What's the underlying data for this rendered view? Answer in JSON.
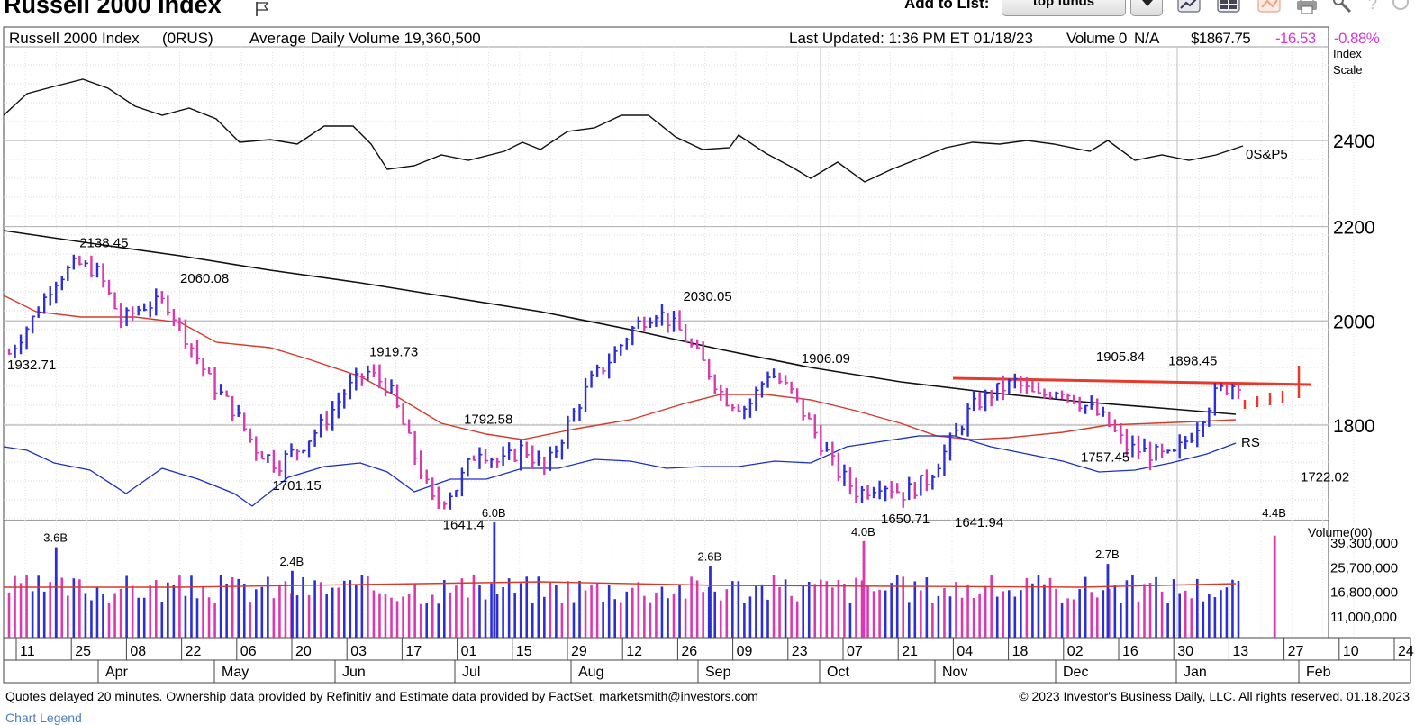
{
  "header": {
    "title": "Russell 2000 Index",
    "add_to_list_label": "Add to List:",
    "list_value": "top funds"
  },
  "icons": [
    "flag-icon",
    "dropdown-caret-icon",
    "chart-icon",
    "layout-icon",
    "compare-icon",
    "print-icon",
    "tools-icon",
    "help-icon"
  ],
  "info_bar": {
    "name": "Russell 2000 Index",
    "symbol": "(0RUS)",
    "avg_volume": "Average Daily Volume 19,360,500",
    "last_updated": "Last Updated: 1:36 PM ET 01/18/23",
    "volume": "Volume 0",
    "volume_na": "N/A",
    "price": "$1867.75",
    "change": "-16.53",
    "change_pct": "-0.88%",
    "scale_label_1": "Index",
    "scale_label_2": "Scale"
  },
  "colors": {
    "up_bar": "#2c2fd6",
    "down_bar": "#d93ab0",
    "ma_50": "#d63a2a",
    "ma_200": "#111111",
    "rs_line": "#1c2fc8",
    "sp500_line": "#111111",
    "resistance": "#e8382a",
    "change_text": "#d63ad6"
  },
  "chart_data": {
    "type": "ohlc_bar",
    "y_axis": {
      "ticks": [
        2400,
        2200,
        2000,
        1800
      ],
      "range": [
        1630,
        2480
      ],
      "scale": "log"
    },
    "price_labels": [
      {
        "text": "2138.45",
        "value": 2138.45,
        "date": "Mar 29"
      },
      {
        "text": "1932.71",
        "value": 1932.71,
        "date": "Mar 11"
      },
      {
        "text": "2060.08",
        "value": 2060.08,
        "date": "Apr 20"
      },
      {
        "text": "1919.73",
        "value": 1919.73,
        "date": "Jun 03"
      },
      {
        "text": "1701.15",
        "value": 1701.15,
        "date": "May 09"
      },
      {
        "text": "1792.58",
        "value": 1792.58,
        "date": "Jun 22"
      },
      {
        "text": "1641.4",
        "value": 1641.4,
        "date": "Jun 16"
      },
      {
        "text": "2030.05",
        "value": 2030.05,
        "date": "Aug 12"
      },
      {
        "text": "1906.09",
        "value": 1906.09,
        "date": "Sep 08"
      },
      {
        "text": "1650.71",
        "value": 1650.71,
        "date": "Sep 26"
      },
      {
        "text": "1641.94",
        "value": 1641.94,
        "date": "Oct 11"
      },
      {
        "text": "1905.84",
        "value": 1905.84,
        "date": "Nov 10"
      },
      {
        "text": "1898.45",
        "value": 1898.45,
        "date": "Nov 28"
      },
      {
        "text": "1757.45",
        "value": 1757.45,
        "date": "Nov 09"
      },
      {
        "text": "1722.02",
        "value": 1722.02,
        "date": "Dec 28"
      }
    ],
    "line_labels": {
      "sp500": "0S&P5",
      "rs": "RS"
    },
    "volume_axis": {
      "title": "Volume(00)",
      "ticks": [
        "39,300,000",
        "25,700,000",
        "16,800,000",
        "11,000,000"
      ],
      "tick_values": [
        39300000,
        25700000,
        16800000,
        11000000
      ]
    },
    "volume_labels": [
      {
        "text": "3.6B",
        "date": "Mar 18"
      },
      {
        "text": "2.4B",
        "date": "May 09"
      },
      {
        "text": "6.0B",
        "date": "Jun 24"
      },
      {
        "text": "2.6B",
        "date": "Aug 12"
      },
      {
        "text": "4.0B",
        "date": "Sep 16"
      },
      {
        "text": "2.7B",
        "date": "Nov 09"
      },
      {
        "text": "4.4B",
        "date": "Dec 16"
      }
    ],
    "x_axis": {
      "day_ticks": [
        "11",
        "25",
        "08",
        "22",
        "06",
        "20",
        "03",
        "17",
        "01",
        "15",
        "29",
        "12",
        "26",
        "09",
        "23",
        "07",
        "21",
        "04",
        "18",
        "02",
        "16",
        "30",
        "13",
        "27",
        "10",
        "24"
      ],
      "month_ticks": [
        "Apr",
        "May",
        "Jun",
        "Jul",
        "Aug",
        "Sep",
        "Oct",
        "Nov",
        "Dec",
        "Jan",
        "Feb"
      ]
    }
  },
  "footer": {
    "left": "Quotes delayed 20 minutes. Ownership data provided by Refinitiv and Estimate data provided by FactSet. marketsmith@investors.com",
    "right": "© 2023 Investor's Business Daily, LLC. All rights reserved.    01.18.2023",
    "legend_link": "Chart Legend"
  }
}
